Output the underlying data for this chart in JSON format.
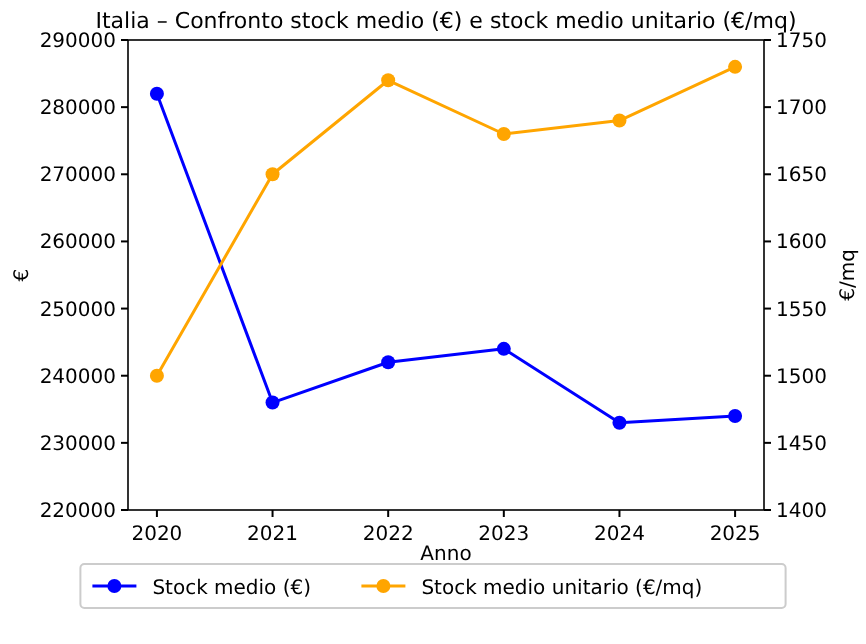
{
  "chart_data": {
    "type": "line",
    "title": "Italia – Confronto stock medio (€) e stock medio unitario (€/mq)",
    "xlabel": "Anno",
    "ylabel": "€",
    "y2label": "€/mq",
    "x": [
      2020,
      2021,
      2022,
      2023,
      2024,
      2025
    ],
    "xlim": [
      2019.75,
      2025.25
    ],
    "xticks": [
      2020,
      2021,
      2022,
      2023,
      2024,
      2025
    ],
    "ylim": [
      220000,
      290000
    ],
    "yticks": [
      220000,
      230000,
      240000,
      250000,
      260000,
      270000,
      280000,
      290000
    ],
    "y2lim": [
      1400,
      1750
    ],
    "y2ticks": [
      1400,
      1450,
      1500,
      1550,
      1600,
      1650,
      1700,
      1750
    ],
    "series": [
      {
        "name": "Stock medio (€)",
        "color": "#0000ff",
        "values": [
          282000,
          236000,
          242000,
          244000,
          233000,
          234000
        ]
      },
      {
        "name": "Stock medio unitario (€/mq)",
        "color": "#ffa500",
        "axis": "y2",
        "values": [
          1500,
          1650,
          1720,
          1680,
          1690,
          1730
        ]
      }
    ],
    "marker": "circle",
    "line_style": "solid",
    "legend": "bottom",
    "grid": false
  }
}
